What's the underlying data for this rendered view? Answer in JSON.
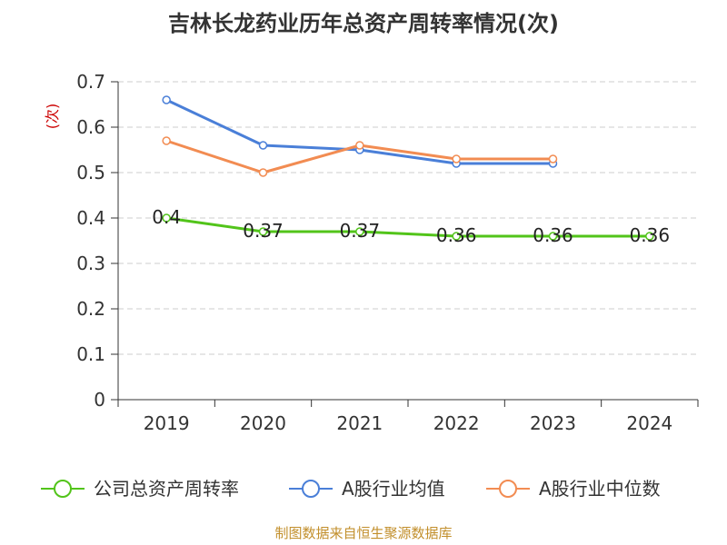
{
  "title": "吉林长龙药业历年总资产周转率情况(次)",
  "source": "制图数据来自恒生聚源数据库",
  "chart_data": {
    "type": "line",
    "title": "吉林长龙药业历年总资产周转率情况(次)",
    "ylabel": "(次)",
    "xlabel": "",
    "categories": [
      "2019",
      "2020",
      "2021",
      "2022",
      "2023",
      "2024"
    ],
    "ylim": [
      0,
      0.7
    ],
    "yticks": [
      "0",
      "0.1",
      "0.2",
      "0.3",
      "0.4",
      "0.5",
      "0.6",
      "0.7"
    ],
    "grid": true,
    "legend_position": "bottom",
    "series": [
      {
        "name": "公司总资产周转率",
        "color": "#52c41a",
        "values": [
          0.4,
          0.37,
          0.37,
          0.36,
          0.36,
          0.36
        ],
        "labels": [
          "0.4",
          "0.37",
          "0.37",
          "0.36",
          "0.36",
          "0.36"
        ]
      },
      {
        "name": "A股行业均值",
        "color": "#4a7fd8",
        "values": [
          0.66,
          0.56,
          0.55,
          0.52,
          0.52,
          null
        ]
      },
      {
        "name": "A股行业中位数",
        "color": "#f28c52",
        "values": [
          0.57,
          0.5,
          0.56,
          0.53,
          0.53,
          null
        ]
      }
    ]
  }
}
